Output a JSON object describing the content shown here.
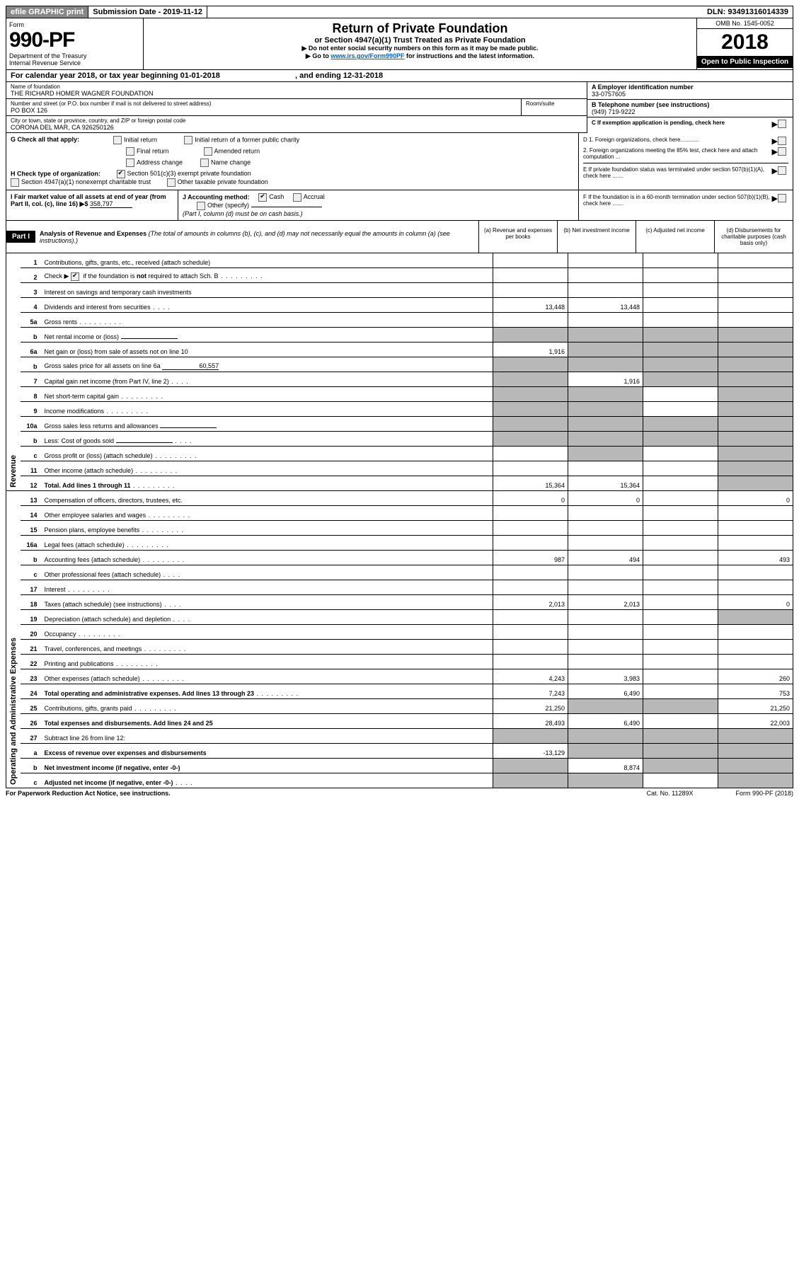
{
  "topbar": {
    "efile": "efile GRAPHIC print",
    "submission": "Submission Date - 2019-11-12",
    "dln": "DLN: 93491316014339"
  },
  "header": {
    "form_word": "Form",
    "form_no": "990-PF",
    "dept1": "Department of the Treasury",
    "dept2": "Internal Revenue Service",
    "title": "Return of Private Foundation",
    "subtitle": "or Section 4947(a)(1) Trust Treated as Private Foundation",
    "instr1": "▶ Do not enter social security numbers on this form as it may be made public.",
    "instr2a": "▶ Go to ",
    "instr2_link": "www.irs.gov/Form990PF",
    "instr2b": " for instructions and the latest information.",
    "omb": "OMB No. 1545-0052",
    "year": "2018",
    "open": "Open to Public Inspection"
  },
  "calyear": {
    "a": "For calendar year 2018, or tax year beginning 01-01-2018",
    "b": ", and ending 12-31-2018"
  },
  "id": {
    "name_label": "Name of foundation",
    "name": "THE RICHARD HOMER WAGNER FOUNDATION",
    "addr_label": "Number and street (or P.O. box number if mail is not delivered to street address)",
    "addr": "PO BOX 126",
    "room_label": "Room/suite",
    "city_label": "City or town, state or province, country, and ZIP or foreign postal code",
    "city": "CORONA DEL MAR, CA  926250126",
    "a_ein_label": "A Employer identification number",
    "a_ein": "33-0757605",
    "b_tel_label": "B Telephone number (see instructions)",
    "b_tel": "(949) 719-9222",
    "c_exempt": "C If exemption application is pending, check here"
  },
  "g": {
    "label": "G Check all that apply:",
    "opts": {
      "a": "Initial return",
      "b": "Initial return of a former public charity",
      "c": "Final return",
      "d": "Amended return",
      "e": "Address change",
      "f": "Name change"
    }
  },
  "h": {
    "label": "H Check type of organization:",
    "a": "Section 501(c)(3) exempt private foundation",
    "b": "Section 4947(a)(1) nonexempt charitable trust",
    "c": "Other taxable private foundation"
  },
  "d": {
    "d1": "D 1. Foreign organizations, check here............",
    "d2": "2. Foreign organizations meeting the 85% test, check here and attach computation ..."
  },
  "e": "E  If private foundation status was terminated under section 507(b)(1)(A), check here .......",
  "f": "F  If the foundation is in a 60-month termination under section 507(b)(1)(B), check here .......",
  "i": {
    "label": "I Fair market value of all assets at end of year (from Part II, col. (c), line 16) ▶$",
    "value": "358,797"
  },
  "j": {
    "label": "J Accounting method:",
    "cash": "Cash",
    "accrual": "Accrual",
    "other": "Other (specify)",
    "note": "(Part I, column (d) must be on cash basis.)"
  },
  "part1": {
    "badge": "Part I",
    "title_b": "Analysis of Revenue and Expenses",
    "title_i": " (The total of amounts in columns (b), (c), and (d) may not necessarily equal the amounts in column (a) (see instructions).)",
    "col_a": "(a)  Revenue and expenses per books",
    "col_b": "(b)  Net investment income",
    "col_c": "(c)  Adjusted net income",
    "col_d": "(d)  Disbursements for charitable purposes (cash basis only)"
  },
  "side": {
    "rev": "Revenue",
    "exp": "Operating and Administrative Expenses"
  },
  "rows": [
    {
      "n": "1",
      "d": "Contributions, gifts, grants, etc., received (attach schedule)"
    },
    {
      "n": "2",
      "d": "Check ▶",
      "d2": " if the foundation is not required to attach Sch. B",
      "chk": true,
      "dots": true
    },
    {
      "n": "3",
      "d": "Interest on savings and temporary cash investments"
    },
    {
      "n": "4",
      "d": "Dividends and interest from securities",
      "a": "13,448",
      "b": "13,448",
      "dots": "sm"
    },
    {
      "n": "5a",
      "d": "Gross rents",
      "dots": true
    },
    {
      "n": "b",
      "d": "Net rental income or (loss)",
      "ul": true,
      "shade": "abcd"
    },
    {
      "n": "6a",
      "d": "Net gain or (loss) from sale of assets not on line 10",
      "a": "1,916",
      "shade": "bcd"
    },
    {
      "n": "b",
      "d": "Gross sales price for all assets on line 6a",
      "ul": true,
      "ulv": "60,557",
      "shade": "abcd"
    },
    {
      "n": "7",
      "d": "Capital gain net income (from Part IV, line 2)",
      "b": "1,916",
      "shade": "acd",
      "dots": "sm"
    },
    {
      "n": "8",
      "d": "Net short-term capital gain",
      "shade": "abd",
      "dots": true
    },
    {
      "n": "9",
      "d": "Income modifications",
      "shade": "abd",
      "dots": true
    },
    {
      "n": "10a",
      "d": "Gross sales less returns and allowances",
      "ul": true,
      "shade": "abcd"
    },
    {
      "n": "b",
      "d": "Less: Cost of goods sold",
      "ul": true,
      "shade": "abcd",
      "dots": "sm"
    },
    {
      "n": "c",
      "d": "Gross profit or (loss) (attach schedule)",
      "shade": "bd",
      "dots": true
    },
    {
      "n": "11",
      "d": "Other income (attach schedule)",
      "dots": true,
      "shade": "d"
    },
    {
      "n": "12",
      "d": "Total. Add lines 1 through 11",
      "a": "15,364",
      "b": "15,364",
      "bold": true,
      "dots": true,
      "shade": "d"
    },
    {
      "n": "13",
      "d": "Compensation of officers, directors, trustees, etc.",
      "a": "0",
      "b": "0",
      "dd": "0"
    },
    {
      "n": "14",
      "d": "Other employee salaries and wages",
      "dots": true
    },
    {
      "n": "15",
      "d": "Pension plans, employee benefits",
      "dots": true
    },
    {
      "n": "16a",
      "d": "Legal fees (attach schedule)",
      "dots": true
    },
    {
      "n": "b",
      "d": "Accounting fees (attach schedule)",
      "a": "987",
      "b": "494",
      "dd": "493",
      "dots": true
    },
    {
      "n": "c",
      "d": "Other professional fees (attach schedule)",
      "dots": "sm"
    },
    {
      "n": "17",
      "d": "Interest",
      "dots": true
    },
    {
      "n": "18",
      "d": "Taxes (attach schedule) (see instructions)",
      "a": "2,013",
      "b": "2,013",
      "dd": "0",
      "dots": "sm"
    },
    {
      "n": "19",
      "d": "Depreciation (attach schedule) and depletion",
      "shade": "d",
      "dots": "sm"
    },
    {
      "n": "20",
      "d": "Occupancy",
      "dots": true
    },
    {
      "n": "21",
      "d": "Travel, conferences, and meetings",
      "dots": true
    },
    {
      "n": "22",
      "d": "Printing and publications",
      "dots": true
    },
    {
      "n": "23",
      "d": "Other expenses (attach schedule)",
      "a": "4,243",
      "b": "3,983",
      "dd": "260",
      "dots": true
    },
    {
      "n": "24",
      "d": "Total operating and administrative expenses. Add lines 13 through 23",
      "a": "7,243",
      "b": "6,490",
      "dd": "753",
      "bold": true,
      "dots": true
    },
    {
      "n": "25",
      "d": "Contributions, gifts, grants paid",
      "a": "21,250",
      "dd": "21,250",
      "dots": true,
      "shade": "bc"
    },
    {
      "n": "26",
      "d": "Total expenses and disbursements. Add lines 24 and 25",
      "a": "28,493",
      "b": "6,490",
      "dd": "22,003",
      "bold": true
    },
    {
      "n": "27",
      "d": "Subtract line 26 from line 12:",
      "shade": "abcd"
    },
    {
      "n": "a",
      "d": "Excess of revenue over expenses and disbursements",
      "a": "-13,129",
      "bold": true,
      "shade": "bcd"
    },
    {
      "n": "b",
      "d": "Net investment income (if negative, enter -0-)",
      "b": "8,874",
      "bold": true,
      "shade": "acd"
    },
    {
      "n": "c",
      "d": "Adjusted net income (if negative, enter -0-)",
      "bold": true,
      "shade": "abd",
      "dots": "sm"
    }
  ],
  "not": "not",
  "footer": {
    "a": "For Paperwork Reduction Act Notice, see instructions.",
    "b": "Cat. No. 11289X",
    "c": "Form 990-PF (2018)"
  }
}
